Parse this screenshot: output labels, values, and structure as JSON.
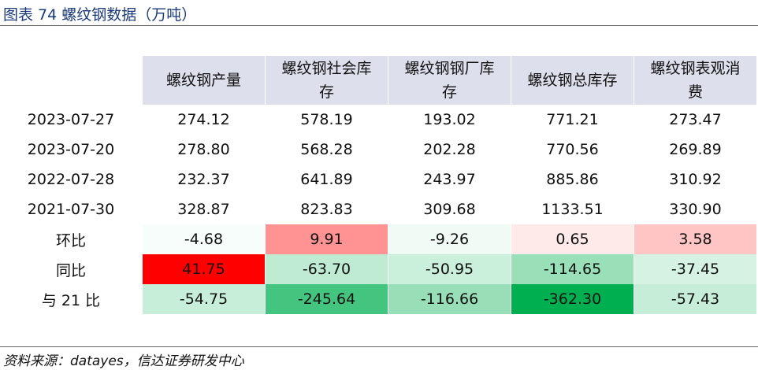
{
  "header": {
    "title": "图表 74 螺纹钢数据（万吨）"
  },
  "table": {
    "columns": [
      "螺纹钢产量",
      "螺纹钢社会库存",
      "螺纹钢钢厂库存",
      "螺纹钢总库存",
      "螺纹钢表观消费"
    ],
    "rows": [
      {
        "label": "2023-07-27",
        "cells": [
          "274.12",
          "578.19",
          "193.02",
          "771.21",
          "273.47"
        ]
      },
      {
        "label": "2023-07-20",
        "cells": [
          "278.80",
          "568.28",
          "202.28",
          "770.56",
          "269.89"
        ]
      },
      {
        "label": "2022-07-28",
        "cells": [
          "232.37",
          "641.89",
          "243.97",
          "885.86",
          "310.92"
        ]
      },
      {
        "label": "2021-07-30",
        "cells": [
          "328.87",
          "823.83",
          "309.68",
          "1133.51",
          "330.90"
        ]
      },
      {
        "label": "环比",
        "cells": [
          "-4.68",
          "9.91",
          "-9.26",
          "0.65",
          "3.58"
        ],
        "heat": true
      },
      {
        "label": "同比",
        "cells": [
          "41.75",
          "-63.70",
          "-50.95",
          "-114.65",
          "-37.45"
        ],
        "heat": true
      },
      {
        "label": "与 21 比",
        "cells": [
          "-54.75",
          "-245.64",
          "-116.66",
          "-362.30",
          "-57.43"
        ],
        "heat": true
      }
    ]
  },
  "footer": {
    "source": "资料来源：datayes，信达证券研发中心"
  }
}
